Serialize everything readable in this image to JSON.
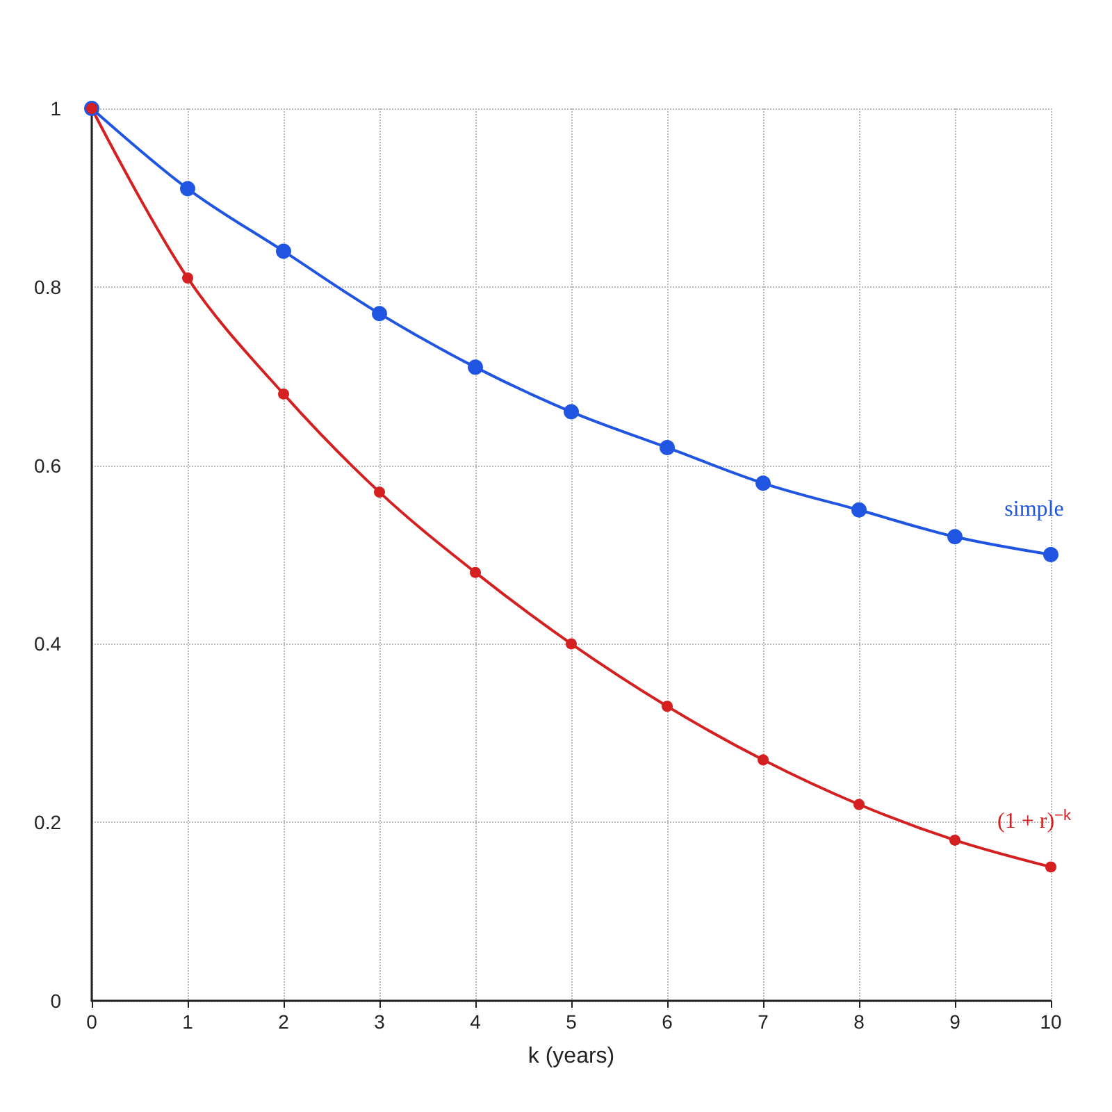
{
  "chart_data": {
    "type": "line",
    "xlabel": "k (years)",
    "x": [
      0,
      1,
      2,
      3,
      4,
      5,
      6,
      7,
      8,
      9,
      10
    ],
    "series": [
      {
        "name": "simple",
        "color": "#1f55e0",
        "values": [
          1,
          0.91,
          0.84,
          0.77,
          0.71,
          0.66,
          0.62,
          0.58,
          0.55,
          0.52,
          0.5
        ]
      },
      {
        "name": "(1 + r)$^{−k}$",
        "color": "#d42020",
        "values": [
          1,
          0.81,
          0.68,
          0.57,
          0.48,
          0.4,
          0.33,
          0.27,
          0.22,
          0.18,
          0.15
        ]
      }
    ],
    "xlim": [
      0,
      10
    ],
    "xticks": [
      0,
      1,
      2,
      3,
      4,
      5,
      6,
      7,
      8,
      9,
      10
    ],
    "ylim": [
      0,
      1
    ],
    "yticks": [
      0,
      0.2,
      0.4,
      0.6,
      0.8,
      1
    ],
    "grid": true,
    "legend": false,
    "marker": "circle",
    "line_style": "solid"
  }
}
